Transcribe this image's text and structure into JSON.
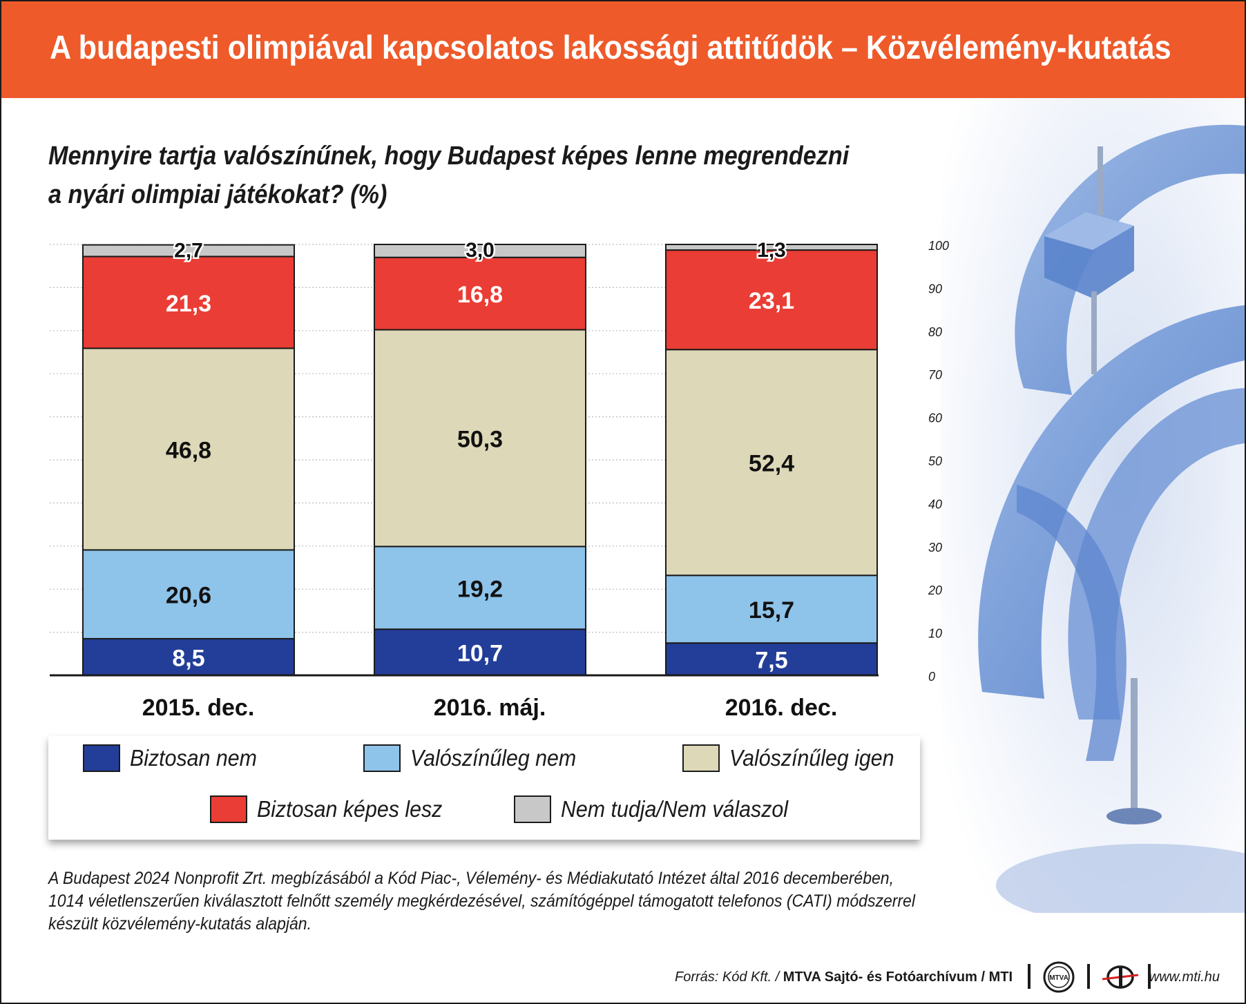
{
  "header": {
    "title": "A budapesti olimpiával kapcsolatos lakossági attitűdök – Közvélemény-kutatás"
  },
  "question": {
    "line1": "Mennyire tartja valószínűnek, hogy Budapest képes lenne megrendezni",
    "line2": "a nyári olimpiai játékokat? (%)"
  },
  "chart_data": {
    "type": "bar",
    "stacked": true,
    "categories": [
      "2015. dec.",
      "2016. máj.",
      "2016. dec."
    ],
    "series": [
      {
        "name": "Biztosan nem",
        "values": [
          "8,5",
          "10,7",
          "7,5"
        ],
        "color": "#233e99"
      },
      {
        "name": "Valószínűleg nem",
        "values": [
          "20,6",
          "19,2",
          "15,7"
        ],
        "color": "#8ec3ea"
      },
      {
        "name": "Valószínűleg igen",
        "values": [
          "46,8",
          "50,3",
          "52,4"
        ],
        "color": "#ddd8b8"
      },
      {
        "name": "Biztosan képes lesz",
        "values": [
          "21,3",
          "16,8",
          "23,1"
        ],
        "color": "#ea3d35"
      },
      {
        "name": "Nem tudja/Nem válaszol",
        "values": [
          "2,7",
          "3,0",
          "1,3"
        ],
        "color": "#c8c8c8"
      }
    ],
    "yticks": [
      "0",
      "10",
      "20",
      "30",
      "40",
      "50",
      "60",
      "70",
      "80",
      "90",
      "100"
    ],
    "ylim": [
      0,
      100
    ],
    "grid": true,
    "legend_position": "bottom"
  },
  "note": {
    "line1": "A Budapest 2024 Nonprofit Zrt. megbízásából a Kód Piac-, Vélemény- és Médiakutató Intézet által 2016 decemberében,",
    "line2": "1014 véletlenszerűen kiválasztott felnőtt személy megkérdezésével, számítógéppel támogatott telefonos (CATI) módszerrel",
    "line3": "készült közvélemény-kutatás alapján."
  },
  "footer": {
    "source_label": "Forrás: Kód Kft. /",
    "source_org": "MTVA Sajtó- és Fotóarchívum / MTI",
    "logo_text": "MTVA",
    "url": "www.mti.hu"
  }
}
